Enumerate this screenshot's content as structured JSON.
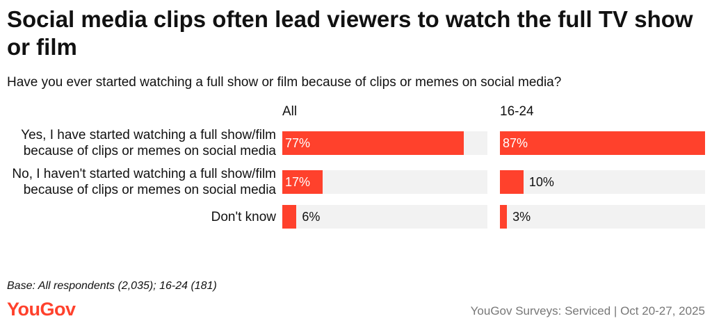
{
  "chart_data": {
    "type": "bar",
    "title": "Social media clips often lead viewers to watch the full TV show or film",
    "subtitle": "Have you ever started watching a full show or film because of clips or memes on social media?",
    "categories": [
      "Yes, I have started watching a full show/film because of clips or memes on social media",
      "No, I haven't started watching a full show/film because of clips or memes on social media",
      "Don't know"
    ],
    "series": [
      {
        "name": "All",
        "color": "#ff412c",
        "values": [
          77,
          17,
          6
        ],
        "value_labels": [
          "77%",
          "17%",
          "6%"
        ]
      },
      {
        "name": "16-24",
        "color": "#ff412c",
        "values": [
          87,
          10,
          3
        ],
        "value_labels": [
          "87%",
          "10%",
          "3%"
        ]
      }
    ],
    "xlim": [
      0,
      87
    ]
  },
  "note": "Base: All respondents (2,035); 16-24 (181)",
  "logo": "YouGov",
  "source": "YouGov Surveys: Serviced | Oct 20-27, 2025"
}
